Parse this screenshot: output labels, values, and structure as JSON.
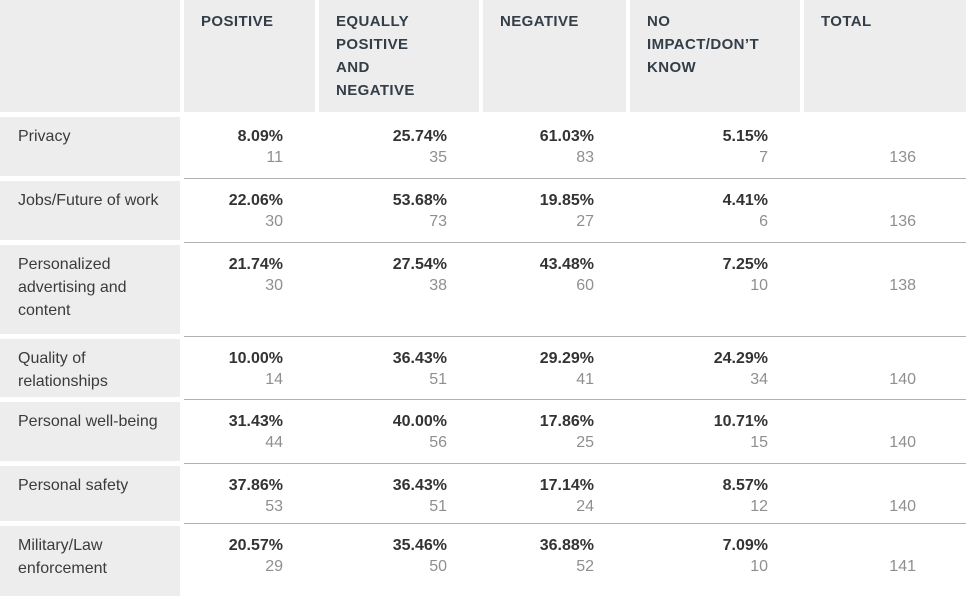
{
  "table": {
    "corner_label": "",
    "columns": [
      "POSITIVE",
      "EQUALLY\nPOSITIVE\nAND\nNEGATIVE",
      "NEGATIVE",
      "NO\nIMPACT/DON’T\nKNOW",
      "TOTAL"
    ],
    "rows": [
      {
        "label": "Privacy",
        "cells": [
          {
            "percent": "8.09%",
            "count": "11"
          },
          {
            "percent": "25.74%",
            "count": "35"
          },
          {
            "percent": "61.03%",
            "count": "83"
          },
          {
            "percent": "5.15%",
            "count": "7"
          }
        ],
        "total": "136"
      },
      {
        "label": "Jobs/Future of work",
        "cells": [
          {
            "percent": "22.06%",
            "count": "30"
          },
          {
            "percent": "53.68%",
            "count": "73"
          },
          {
            "percent": "19.85%",
            "count": "27"
          },
          {
            "percent": "4.41%",
            "count": "6"
          }
        ],
        "total": "136"
      },
      {
        "label": "Personalized advertising and content",
        "cells": [
          {
            "percent": "21.74%",
            "count": "30"
          },
          {
            "percent": "27.54%",
            "count": "38"
          },
          {
            "percent": "43.48%",
            "count": "60"
          },
          {
            "percent": "7.25%",
            "count": "10"
          }
        ],
        "total": "138"
      },
      {
        "label": "Quality of relationships",
        "cells": [
          {
            "percent": "10.00%",
            "count": "14"
          },
          {
            "percent": "36.43%",
            "count": "51"
          },
          {
            "percent": "29.29%",
            "count": "41"
          },
          {
            "percent": "24.29%",
            "count": "34"
          }
        ],
        "total": "140"
      },
      {
        "label": "Personal well-being",
        "cells": [
          {
            "percent": "31.43%",
            "count": "44"
          },
          {
            "percent": "40.00%",
            "count": "56"
          },
          {
            "percent": "17.86%",
            "count": "25"
          },
          {
            "percent": "10.71%",
            "count": "15"
          }
        ],
        "total": "140"
      },
      {
        "label": "Personal safety",
        "cells": [
          {
            "percent": "37.86%",
            "count": "53"
          },
          {
            "percent": "36.43%",
            "count": "51"
          },
          {
            "percent": "17.14%",
            "count": "24"
          },
          {
            "percent": "8.57%",
            "count": "12"
          }
        ],
        "total": "140"
      },
      {
        "label": "Military/Law enforcement",
        "cells": [
          {
            "percent": "20.57%",
            "count": "29"
          },
          {
            "percent": "35.46%",
            "count": "50"
          },
          {
            "percent": "36.88%",
            "count": "52"
          },
          {
            "percent": "7.09%",
            "count": "10"
          }
        ],
        "total": "141"
      }
    ]
  },
  "colors": {
    "cell_background": "#ededed",
    "header_text": "#333e48",
    "label_text": "#3b3b3b",
    "percent_text": "#333333",
    "count_text": "#8f8f8f",
    "divider": "#b0b0b0",
    "page_background": "#ffffff"
  },
  "chart_data": {
    "type": "table",
    "title": "",
    "categories": [
      "Privacy",
      "Jobs/Future of work",
      "Personalized advertising and content",
      "Quality of relationships",
      "Personal well-being",
      "Personal safety",
      "Military/Law enforcement"
    ],
    "series": [
      {
        "name": "POSITIVE",
        "percent": [
          8.09,
          22.06,
          21.74,
          10.0,
          31.43,
          37.86,
          20.57
        ],
        "count": [
          11,
          30,
          30,
          14,
          44,
          53,
          29
        ]
      },
      {
        "name": "EQUALLY POSITIVE AND NEGATIVE",
        "percent": [
          25.74,
          53.68,
          27.54,
          36.43,
          40.0,
          36.43,
          35.46
        ],
        "count": [
          35,
          73,
          38,
          51,
          56,
          51,
          50
        ]
      },
      {
        "name": "NEGATIVE",
        "percent": [
          61.03,
          19.85,
          43.48,
          29.29,
          17.86,
          17.14,
          36.88
        ],
        "count": [
          83,
          27,
          60,
          41,
          25,
          24,
          52
        ]
      },
      {
        "name": "NO IMPACT/DON’T KNOW",
        "percent": [
          5.15,
          4.41,
          7.25,
          24.29,
          10.71,
          8.57,
          7.09
        ],
        "count": [
          7,
          6,
          10,
          34,
          15,
          12,
          10
        ]
      }
    ],
    "totals": [
      136,
      136,
      138,
      140,
      140,
      140,
      141
    ],
    "legend_position": "none",
    "grid": "row-dividers"
  }
}
